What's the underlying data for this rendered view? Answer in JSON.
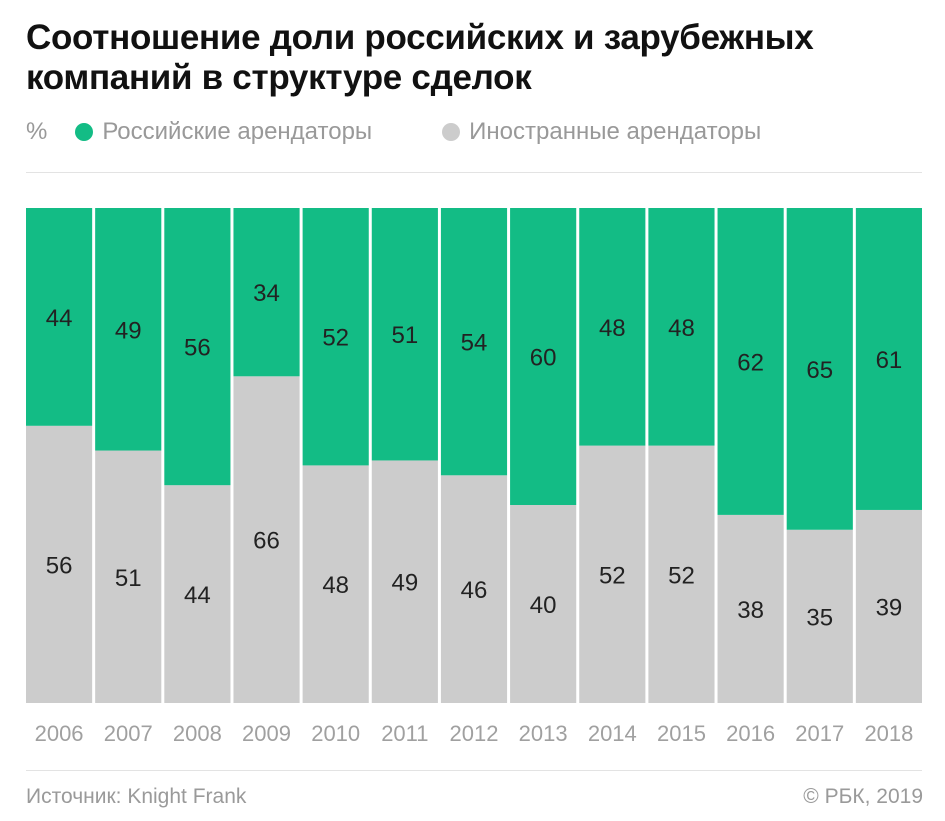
{
  "title": "Соотношение доли российских и зарубежных компаний в структуре сделок",
  "legend": {
    "unit": "%",
    "items": [
      {
        "label": "Российские арендаторы",
        "color": "#13bc85"
      },
      {
        "label": "Иностранные арендаторы",
        "color": "#cccccc"
      }
    ]
  },
  "chart_data": {
    "type": "bar",
    "stacked": true,
    "normalized": true,
    "categories": [
      "2006",
      "2007",
      "2008",
      "2009",
      "2010",
      "2011",
      "2012",
      "2013",
      "2014",
      "2015",
      "2016",
      "2017",
      "2018"
    ],
    "series": [
      {
        "name": "Иностранные арендаторы",
        "color": "#cccccc",
        "values": [
          56,
          51,
          44,
          66,
          48,
          49,
          46,
          40,
          52,
          52,
          38,
          35,
          39
        ]
      },
      {
        "name": "Российские арендаторы",
        "color": "#13bc85",
        "values": [
          44,
          49,
          56,
          34,
          52,
          51,
          54,
          60,
          48,
          48,
          62,
          65,
          61
        ]
      }
    ],
    "ylim": [
      0,
      100
    ],
    "legend": "top-left",
    "grid": false
  },
  "footer": {
    "source": "Источник: Knight Frank",
    "copyright": "© РБК, 2019"
  }
}
